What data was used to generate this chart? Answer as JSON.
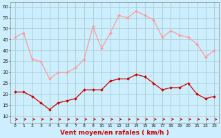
{
  "hours": [
    0,
    1,
    2,
    3,
    4,
    5,
    6,
    7,
    8,
    9,
    10,
    11,
    12,
    13,
    14,
    15,
    16,
    17,
    18,
    19,
    20,
    21,
    22,
    23
  ],
  "wind_avg": [
    21,
    21,
    19,
    16,
    13,
    16,
    17,
    18,
    22,
    22,
    22,
    26,
    27,
    27,
    29,
    28,
    25,
    22,
    23,
    23,
    25,
    20,
    18,
    19
  ],
  "wind_gust": [
    46,
    48,
    36,
    35,
    27,
    30,
    30,
    32,
    36,
    51,
    41,
    48,
    56,
    55,
    58,
    56,
    54,
    46,
    49,
    47,
    46,
    43,
    37,
    40
  ],
  "bg_color": "#cceeff",
  "grid_color": "#aacccc",
  "avg_color": "#cc0000",
  "gust_color": "#ff9999",
  "arrow_color": "#cc0000",
  "xlabel": "Vent moyen/en rafales ( km/h )",
  "xlabel_color": "#cc0000",
  "yticks": [
    10,
    15,
    20,
    25,
    30,
    35,
    40,
    45,
    50,
    55,
    60
  ],
  "xticks": [
    0,
    1,
    2,
    3,
    4,
    5,
    6,
    7,
    8,
    9,
    10,
    11,
    12,
    13,
    14,
    15,
    16,
    17,
    18,
    19,
    20,
    21,
    22,
    23
  ],
  "ylim": [
    7,
    62
  ],
  "xlim": [
    -0.5,
    23.5
  ]
}
